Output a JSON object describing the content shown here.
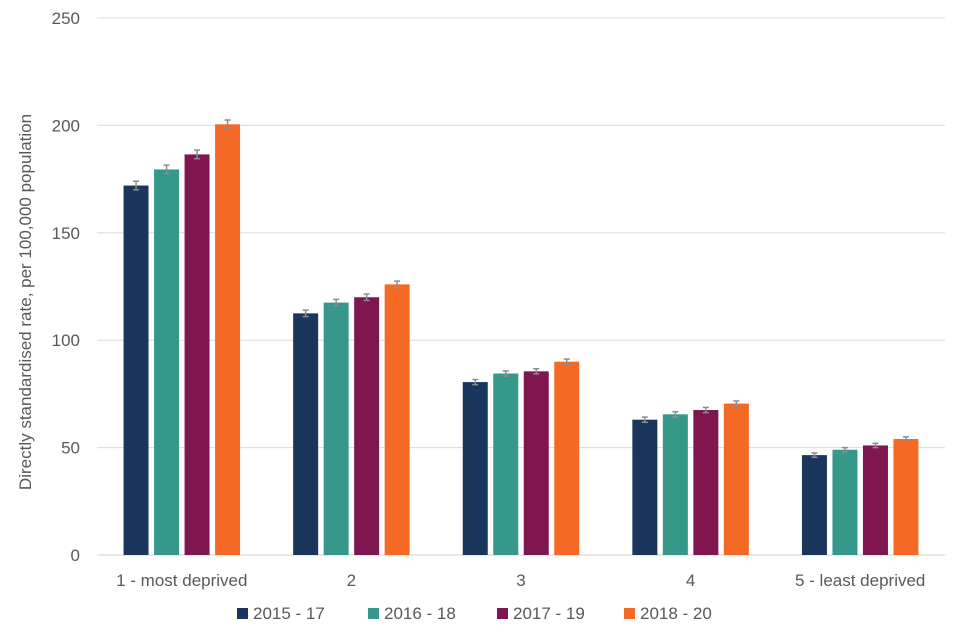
{
  "chart_data": {
    "type": "bar",
    "title": "",
    "xlabel": "",
    "ylabel": "Directly standardised rate, per 100,000 population",
    "ylim": [
      0,
      250
    ],
    "yticks": [
      0,
      50,
      100,
      150,
      200,
      250
    ],
    "grid": true,
    "legend_position": "bottom",
    "categories": [
      "1 - most deprived",
      "2",
      "3",
      "4",
      "5 - least deprived"
    ],
    "series": [
      {
        "name": "2015 - 17",
        "color": "#1b365d",
        "values": [
          172,
          112.5,
          80.5,
          63,
          46.5
        ],
        "err": [
          2,
          1.5,
          1.2,
          1.2,
          1
        ]
      },
      {
        "name": "2016 - 18",
        "color": "#36978b",
        "values": [
          179.5,
          117.5,
          84.5,
          65.5,
          49
        ],
        "err": [
          2,
          1.5,
          1.2,
          1.2,
          1
        ]
      },
      {
        "name": "2017 - 19",
        "color": "#801650",
        "values": [
          186.5,
          120,
          85.5,
          67.5,
          51
        ],
        "err": [
          2,
          1.5,
          1.2,
          1.2,
          1
        ]
      },
      {
        "name": "2018 - 20",
        "color": "#f46a25",
        "values": [
          200.5,
          126,
          90,
          70.5,
          54
        ],
        "err": [
          2,
          1.5,
          1.2,
          1.2,
          1
        ]
      }
    ]
  }
}
